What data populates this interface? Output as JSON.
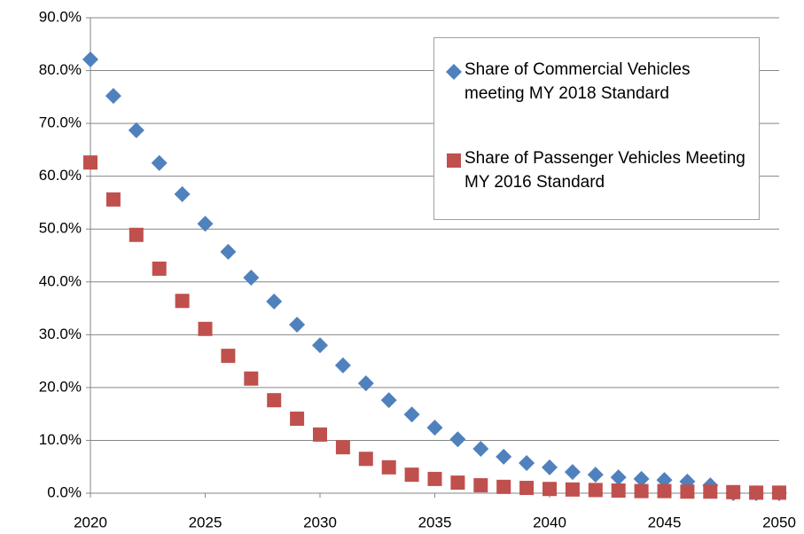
{
  "chart_data": {
    "type": "scatter",
    "x": [
      2020,
      2021,
      2022,
      2023,
      2024,
      2025,
      2026,
      2027,
      2028,
      2029,
      2030,
      2031,
      2032,
      2033,
      2034,
      2035,
      2036,
      2037,
      2038,
      2039,
      2040,
      2041,
      2042,
      2043,
      2044,
      2045,
      2046,
      2047,
      2048,
      2049,
      2050
    ],
    "series": [
      {
        "name": "Share of Commercial Vehicles meeting MY 2018 Standard",
        "color": "#4f81bd",
        "marker": "diamond",
        "values": [
          82.1,
          75.2,
          68.7,
          62.5,
          56.6,
          51.0,
          45.7,
          40.8,
          36.3,
          31.9,
          28.0,
          24.2,
          20.8,
          17.6,
          14.9,
          12.4,
          10.2,
          8.4,
          6.9,
          5.7,
          4.9,
          4.0,
          3.5,
          3.0,
          2.7,
          2.5,
          2.2,
          1.5,
          0,
          0,
          0
        ]
      },
      {
        "name": "Share of Passenger Vehicles Meeting MY 2016 Standard",
        "color": "#c0504d",
        "marker": "square",
        "values": [
          62.6,
          55.6,
          48.9,
          42.5,
          36.4,
          31.1,
          26.0,
          21.7,
          17.6,
          14.1,
          11.1,
          8.7,
          6.5,
          4.9,
          3.5,
          2.7,
          2.0,
          1.5,
          1.2,
          1.0,
          0.8,
          0.7,
          0.6,
          0.5,
          0.4,
          0.4,
          0.3,
          0.3,
          0.2,
          0.1,
          0.1
        ]
      }
    ],
    "xlim": [
      2020,
      2050
    ],
    "xticks": [
      2020,
      2025,
      2030,
      2035,
      2040,
      2045,
      2050
    ],
    "ylim": [
      0,
      90
    ],
    "yticks": [
      {
        "value": 0,
        "label": "0.0%"
      },
      {
        "value": 10,
        "label": "10.0%"
      },
      {
        "value": 20,
        "label": "20.0%"
      },
      {
        "value": 30,
        "label": "30.0%"
      },
      {
        "value": 40,
        "label": "40.0%"
      },
      {
        "value": 50,
        "label": "50.0%"
      },
      {
        "value": 60,
        "label": "60.0%"
      },
      {
        "value": 70,
        "label": "70.0%"
      },
      {
        "value": 80,
        "label": "80.0%"
      },
      {
        "value": 90,
        "label": "90.0%"
      }
    ],
    "grid": true
  }
}
